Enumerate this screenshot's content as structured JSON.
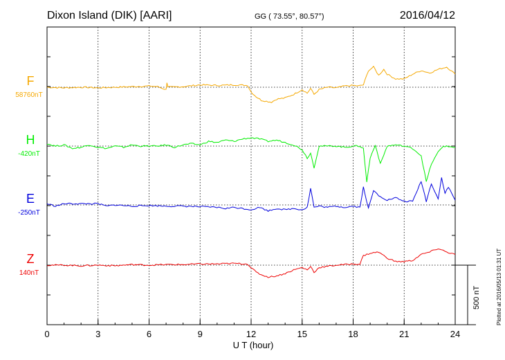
{
  "header": {
    "station": "Dixon Island (DIK)  [AARI]",
    "coords": "GG ( 73.55°,  80.57°)",
    "date": "2016/04/12"
  },
  "side_note": "Plotted at 2016/05/13 01:31  UT",
  "scale_label": "500 nT",
  "chart_data": {
    "type": "line",
    "xlabel": "U T (hour)",
    "xlim": [
      0,
      24
    ],
    "xticks": [
      "0",
      "3",
      "6",
      "9",
      "12",
      "15",
      "18",
      "21",
      "24"
    ],
    "grid": true,
    "scale_nT": 500,
    "series": [
      {
        "name": "F",
        "baseline_label": "58760nT",
        "baseline_nT": 58760,
        "color": "#f5a800",
        "points": [
          [
            0,
            0
          ],
          [
            1,
            -5
          ],
          [
            2,
            0
          ],
          [
            3,
            -5
          ],
          [
            4,
            0
          ],
          [
            5,
            5
          ],
          [
            6,
            10
          ],
          [
            6.5,
            5
          ],
          [
            7,
            -20
          ],
          [
            7.05,
            40
          ],
          [
            7.1,
            0
          ],
          [
            8,
            5
          ],
          [
            9,
            20
          ],
          [
            10,
            15
          ],
          [
            11,
            20
          ],
          [
            11.8,
            15
          ],
          [
            12,
            -40
          ],
          [
            12.3,
            -80
          ],
          [
            12.6,
            -110
          ],
          [
            13,
            -120
          ],
          [
            13.2,
            -125
          ],
          [
            13.5,
            -100
          ],
          [
            14,
            -90
          ],
          [
            14.5,
            -60
          ],
          [
            15,
            -20
          ],
          [
            15.3,
            -50
          ],
          [
            15.5,
            -10
          ],
          [
            15.7,
            -60
          ],
          [
            16,
            -20
          ],
          [
            16.5,
            0
          ],
          [
            17,
            -5
          ],
          [
            17.5,
            10
          ],
          [
            18,
            15
          ],
          [
            18.3,
            10
          ],
          [
            18.6,
            20
          ],
          [
            18.9,
            140
          ],
          [
            19.2,
            170
          ],
          [
            19.5,
            100
          ],
          [
            19.8,
            150
          ],
          [
            20,
            110
          ],
          [
            20.5,
            70
          ],
          [
            21,
            70
          ],
          [
            21.5,
            110
          ],
          [
            22,
            140
          ],
          [
            22.5,
            120
          ],
          [
            23,
            150
          ],
          [
            23.5,
            170
          ],
          [
            24,
            110
          ]
        ]
      },
      {
        "name": "H",
        "baseline_label": "-420nT",
        "baseline_nT": -420,
        "color": "#00ee00",
        "points": [
          [
            0,
            20
          ],
          [
            0.5,
            0
          ],
          [
            1,
            10
          ],
          [
            1.5,
            -20
          ],
          [
            2,
            -10
          ],
          [
            2.5,
            10
          ],
          [
            3,
            -10
          ],
          [
            3.5,
            -20
          ],
          [
            4,
            0
          ],
          [
            4.5,
            -10
          ],
          [
            5,
            10
          ],
          [
            5.5,
            0
          ],
          [
            6,
            0
          ],
          [
            6.5,
            0
          ],
          [
            7,
            10
          ],
          [
            7.5,
            -10
          ],
          [
            8,
            10
          ],
          [
            8.5,
            20
          ],
          [
            9,
            10
          ],
          [
            9.5,
            40
          ],
          [
            10,
            30
          ],
          [
            10.5,
            50
          ],
          [
            11,
            40
          ],
          [
            11.5,
            60
          ],
          [
            12,
            70
          ],
          [
            12.5,
            60
          ],
          [
            13,
            40
          ],
          [
            13.5,
            50
          ],
          [
            14,
            30
          ],
          [
            14.5,
            10
          ],
          [
            15,
            -30
          ],
          [
            15.3,
            -100
          ],
          [
            15.5,
            -60
          ],
          [
            15.7,
            -180
          ],
          [
            16,
            0
          ],
          [
            16.5,
            0
          ],
          [
            17,
            0
          ],
          [
            17.5,
            -10
          ],
          [
            18,
            0
          ],
          [
            18.4,
            0
          ],
          [
            18.6,
            -20
          ],
          [
            18.8,
            -300
          ],
          [
            19,
            -100
          ],
          [
            19.3,
            10
          ],
          [
            19.6,
            -150
          ],
          [
            20,
            0
          ],
          [
            20.5,
            10
          ],
          [
            21,
            0
          ],
          [
            21.5,
            -20
          ],
          [
            22,
            -80
          ],
          [
            22.3,
            -300
          ],
          [
            22.6,
            -150
          ],
          [
            23,
            -50
          ],
          [
            23.3,
            0
          ],
          [
            24,
            -10
          ]
        ]
      },
      {
        "name": "E",
        "baseline_label": "-250nT",
        "baseline_nT": -250,
        "color": "#0000dd",
        "points": [
          [
            0,
            10
          ],
          [
            0.5,
            -10
          ],
          [
            1,
            10
          ],
          [
            2,
            10
          ],
          [
            3,
            10
          ],
          [
            3.5,
            -10
          ],
          [
            4,
            0
          ],
          [
            5,
            -10
          ],
          [
            6,
            -5
          ],
          [
            7,
            -10
          ],
          [
            8,
            -10
          ],
          [
            9,
            -15
          ],
          [
            10,
            -20
          ],
          [
            10.5,
            -30
          ],
          [
            11,
            -20
          ],
          [
            11.5,
            -30
          ],
          [
            12,
            -40
          ],
          [
            12.5,
            -20
          ],
          [
            13,
            -50
          ],
          [
            13.5,
            -30
          ],
          [
            14,
            -40
          ],
          [
            14.5,
            -30
          ],
          [
            15,
            -40
          ],
          [
            15.3,
            -20
          ],
          [
            15.5,
            140
          ],
          [
            15.7,
            -20
          ],
          [
            16,
            -10
          ],
          [
            16.5,
            -20
          ],
          [
            17,
            -10
          ],
          [
            17.5,
            -20
          ],
          [
            18,
            -10
          ],
          [
            18.4,
            -20
          ],
          [
            18.6,
            150
          ],
          [
            18.9,
            -30
          ],
          [
            19.2,
            120
          ],
          [
            19.5,
            80
          ],
          [
            20,
            40
          ],
          [
            20.5,
            60
          ],
          [
            21,
            30
          ],
          [
            21.5,
            30
          ],
          [
            22,
            200
          ],
          [
            22.3,
            30
          ],
          [
            22.6,
            180
          ],
          [
            23,
            50
          ],
          [
            23.2,
            230
          ],
          [
            23.4,
            100
          ],
          [
            23.6,
            150
          ],
          [
            24,
            40
          ]
        ]
      },
      {
        "name": "Z",
        "baseline_label": "140nT",
        "baseline_nT": 140,
        "color": "#ee0000",
        "points": [
          [
            0,
            0
          ],
          [
            1,
            0
          ],
          [
            2,
            -5
          ],
          [
            3,
            0
          ],
          [
            4,
            -5
          ],
          [
            5,
            5
          ],
          [
            6,
            0
          ],
          [
            7,
            5
          ],
          [
            8,
            5
          ],
          [
            9,
            10
          ],
          [
            10,
            10
          ],
          [
            11,
            15
          ],
          [
            11.8,
            10
          ],
          [
            12,
            -20
          ],
          [
            12.3,
            -60
          ],
          [
            12.6,
            -80
          ],
          [
            13,
            -100
          ],
          [
            13.5,
            -90
          ],
          [
            14,
            -70
          ],
          [
            14.5,
            -40
          ],
          [
            15,
            -20
          ],
          [
            15.3,
            -40
          ],
          [
            15.5,
            -10
          ],
          [
            15.7,
            -60
          ],
          [
            16,
            -20
          ],
          [
            16.5,
            -10
          ],
          [
            17,
            0
          ],
          [
            17.5,
            5
          ],
          [
            18,
            10
          ],
          [
            18.4,
            10
          ],
          [
            18.6,
            80
          ],
          [
            19,
            100
          ],
          [
            19.5,
            110
          ],
          [
            20,
            60
          ],
          [
            20.5,
            30
          ],
          [
            21,
            30
          ],
          [
            21.5,
            40
          ],
          [
            22,
            90
          ],
          [
            22.5,
            110
          ],
          [
            23,
            140
          ],
          [
            23.5,
            110
          ],
          [
            24,
            90
          ]
        ]
      }
    ]
  }
}
